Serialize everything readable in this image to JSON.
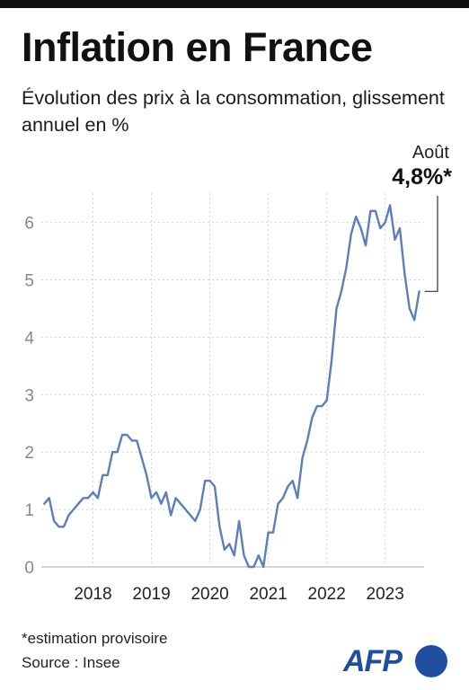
{
  "header": {
    "title": "Inflation en France",
    "subtitle": "Évolution des prix à la consommation, glissement annuel en %"
  },
  "annotation": {
    "label": "Août",
    "value": "4,8%*"
  },
  "footer": {
    "footnote": "*estimation provisoire",
    "source": "Source : Insee"
  },
  "logo": {
    "text": "AFP"
  },
  "colors": {
    "line": "#5b7fba",
    "grid": "#d2d2d2",
    "axis_text": "#888888",
    "brand": "#1f4f9e"
  },
  "chart_data": {
    "type": "line",
    "title": "Inflation en France",
    "xlabel": "",
    "ylabel": "",
    "ylim": [
      0,
      6.5
    ],
    "yticks": [
      0,
      1,
      2,
      3,
      4,
      5,
      6
    ],
    "xticks": [
      "2018",
      "2019",
      "2020",
      "2021",
      "2022",
      "2023"
    ],
    "grid": "horizontal and vertical, dotted",
    "legend": "none",
    "x": [
      "2017-03",
      "2017-04",
      "2017-05",
      "2017-06",
      "2017-07",
      "2017-08",
      "2017-09",
      "2017-10",
      "2017-11",
      "2017-12",
      "2018-01",
      "2018-02",
      "2018-03",
      "2018-04",
      "2018-05",
      "2018-06",
      "2018-07",
      "2018-08",
      "2018-09",
      "2018-10",
      "2018-11",
      "2018-12",
      "2019-01",
      "2019-02",
      "2019-03",
      "2019-04",
      "2019-05",
      "2019-06",
      "2019-07",
      "2019-08",
      "2019-09",
      "2019-10",
      "2019-11",
      "2019-12",
      "2020-01",
      "2020-02",
      "2020-03",
      "2020-04",
      "2020-05",
      "2020-06",
      "2020-07",
      "2020-08",
      "2020-09",
      "2020-10",
      "2020-11",
      "2020-12",
      "2021-01",
      "2021-02",
      "2021-03",
      "2021-04",
      "2021-05",
      "2021-06",
      "2021-07",
      "2021-08",
      "2021-09",
      "2021-10",
      "2021-11",
      "2021-12",
      "2022-01",
      "2022-02",
      "2022-03",
      "2022-04",
      "2022-05",
      "2022-06",
      "2022-07",
      "2022-08",
      "2022-09",
      "2022-10",
      "2022-11",
      "2022-12",
      "2023-01",
      "2023-02",
      "2023-03",
      "2023-04",
      "2023-05",
      "2023-06",
      "2023-07",
      "2023-08"
    ],
    "series": [
      {
        "values": [
          1.1,
          1.2,
          0.8,
          0.7,
          0.7,
          0.9,
          1.0,
          1.1,
          1.2,
          1.2,
          1.3,
          1.2,
          1.6,
          1.6,
          2.0,
          2.0,
          2.3,
          2.3,
          2.2,
          2.2,
          1.9,
          1.6,
          1.2,
          1.3,
          1.1,
          1.3,
          0.9,
          1.2,
          1.1,
          1.0,
          0.9,
          0.8,
          1.0,
          1.5,
          1.5,
          1.4,
          0.7,
          0.3,
          0.4,
          0.2,
          0.8,
          0.2,
          0.0,
          0.0,
          0.2,
          0.0,
          0.6,
          0.6,
          1.1,
          1.2,
          1.4,
          1.5,
          1.2,
          1.9,
          2.2,
          2.6,
          2.8,
          2.8,
          2.9,
          3.6,
          4.5,
          4.8,
          5.2,
          5.8,
          6.1,
          5.9,
          5.6,
          6.2,
          6.2,
          5.9,
          6.0,
          6.3,
          5.7,
          5.9,
          5.1,
          4.5,
          4.3,
          4.8
        ]
      }
    ]
  }
}
